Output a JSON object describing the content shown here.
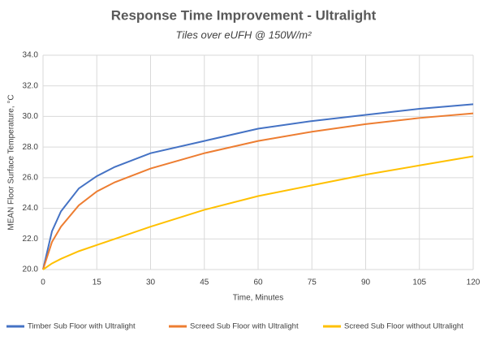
{
  "chart_data": {
    "type": "line",
    "title": "Response Time Improvement - Ultralight",
    "subtitle": "Tiles over eUFH @ 150W/m²",
    "x_label": "Time, Minutes",
    "y_label": "MEAN Floor Surface Temperature, °C",
    "x": [
      0,
      2.5,
      5,
      10,
      15,
      20,
      30,
      45,
      60,
      75,
      90,
      105,
      120
    ],
    "series": [
      {
        "name": "Timber Sub Floor with Ultralight",
        "color": "#4472c4",
        "values": [
          20.0,
          22.5,
          23.8,
          25.3,
          26.1,
          26.7,
          27.6,
          28.4,
          29.2,
          29.7,
          30.1,
          30.5,
          30.8
        ]
      },
      {
        "name": "Screed Sub Floor with Ultralight",
        "color": "#ed7d31",
        "values": [
          20.0,
          21.8,
          22.8,
          24.2,
          25.1,
          25.7,
          26.6,
          27.6,
          28.4,
          29.0,
          29.5,
          29.9,
          30.2
        ]
      },
      {
        "name": "Screed Sub Floor without Ultralight",
        "color": "#ffc000",
        "values": [
          20.0,
          20.4,
          20.7,
          21.2,
          21.6,
          22.0,
          22.8,
          23.9,
          24.8,
          25.5,
          26.2,
          26.8,
          27.4
        ]
      }
    ],
    "xlim": [
      0,
      120
    ],
    "xticks": [
      0,
      15,
      30,
      45,
      60,
      75,
      90,
      105,
      120
    ],
    "ylim": [
      20,
      34
    ],
    "yticks": [
      {
        "value": 20,
        "label": "20.0"
      },
      {
        "value": 22,
        "label": "22.0"
      },
      {
        "value": 24,
        "label": "24.0"
      },
      {
        "value": 26,
        "label": "26.0"
      },
      {
        "value": 28,
        "label": "28.0"
      },
      {
        "value": 30,
        "label": "30.0"
      },
      {
        "value": 32,
        "label": "32.0"
      },
      {
        "value": 34,
        "label": "34.0"
      }
    ],
    "grid": true,
    "legend": "bottom"
  }
}
